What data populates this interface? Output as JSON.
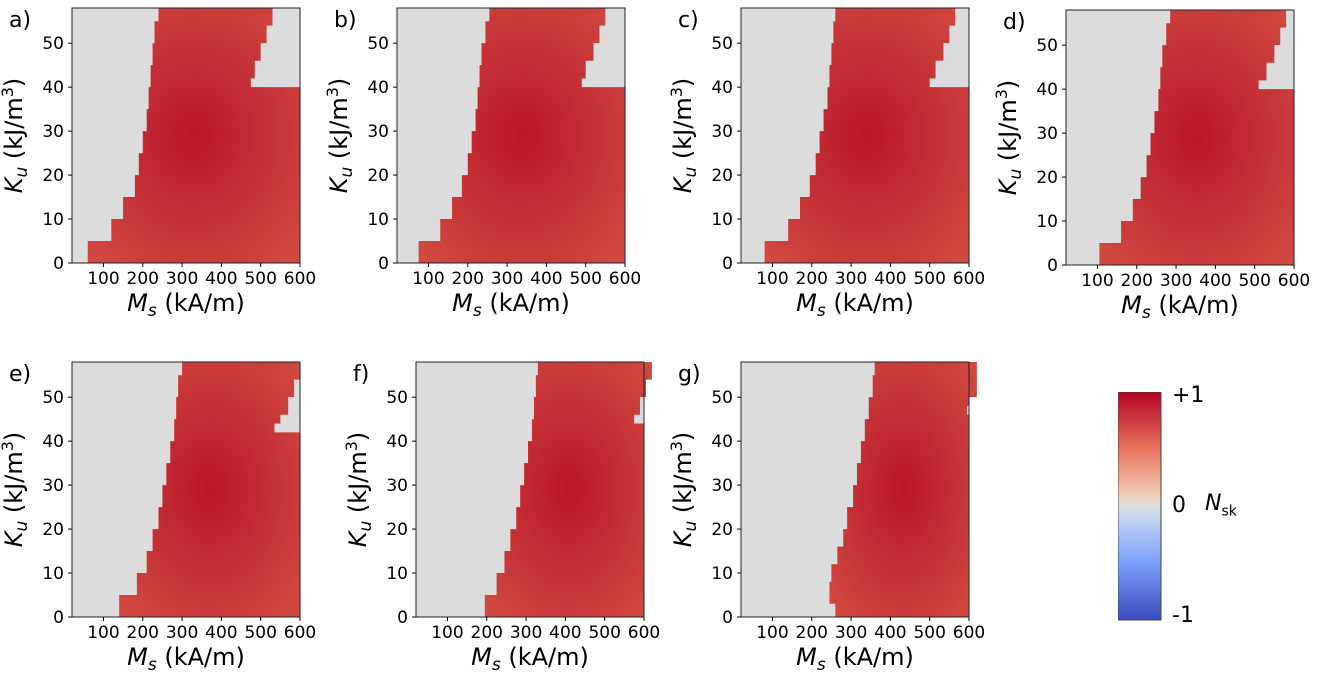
{
  "colors": {
    "background_region": "#dcdcdc",
    "skyrmion_region": "#c0282d",
    "colormap_high": "#b40426",
    "colormap_mid": "#dddddd",
    "colormap_low": "#3b4cc0"
  },
  "colorbar": {
    "label_main": "N",
    "label_sub": "sk",
    "ticks": [
      "+1",
      "0",
      "-1"
    ],
    "range": [
      -1,
      1
    ]
  },
  "chart_data": [
    {
      "panel": "a)",
      "type": "heatmap",
      "xlabel": "M_s (kA/m)",
      "ylabel": "K_u (kJ/m^3)",
      "xticks": [
        100,
        200,
        300,
        400,
        500,
        600
      ],
      "yticks": [
        0,
        10,
        20,
        30,
        40,
        50
      ],
      "xlim": [
        20,
        600
      ],
      "ylim": [
        0,
        58
      ],
      "skyrmion_region": {
        "value": 1,
        "left_boundary_Ms": [
          [
            0,
            60
          ],
          [
            5,
            120
          ],
          [
            10,
            150
          ],
          [
            15,
            180
          ],
          [
            20,
            190
          ],
          [
            25,
            200
          ],
          [
            30,
            210
          ],
          [
            35,
            215
          ],
          [
            40,
            220
          ],
          [
            45,
            225
          ],
          [
            50,
            230
          ],
          [
            55,
            240
          ],
          [
            58,
            245
          ]
        ],
        "upper_right_gap": [
          [
            58,
            530
          ],
          [
            54,
            515
          ],
          [
            50,
            500
          ],
          [
            46,
            485
          ],
          [
            42,
            475
          ],
          [
            40,
            470
          ]
        ]
      }
    },
    {
      "panel": "b)",
      "type": "heatmap",
      "xlabel": "M_s (kA/m)",
      "ylabel": "K_u (kJ/m^3)",
      "xticks": [
        100,
        200,
        300,
        400,
        500,
        600
      ],
      "yticks": [
        0,
        10,
        20,
        30,
        40,
        50
      ],
      "xlim": [
        20,
        600
      ],
      "ylim": [
        0,
        58
      ],
      "skyrmion_region": {
        "value": 1,
        "left_boundary_Ms": [
          [
            0,
            75
          ],
          [
            5,
            130
          ],
          [
            10,
            160
          ],
          [
            15,
            185
          ],
          [
            20,
            200
          ],
          [
            25,
            210
          ],
          [
            30,
            220
          ],
          [
            35,
            225
          ],
          [
            40,
            230
          ],
          [
            45,
            235
          ],
          [
            50,
            245
          ],
          [
            55,
            255
          ],
          [
            58,
            260
          ]
        ],
        "upper_right_gap": [
          [
            58,
            550
          ],
          [
            54,
            535
          ],
          [
            50,
            520
          ],
          [
            46,
            500
          ],
          [
            42,
            490
          ],
          [
            40,
            480
          ]
        ]
      }
    },
    {
      "panel": "c)",
      "type": "heatmap",
      "xlabel": "M_s (kA/m)",
      "ylabel": "K_u (kJ/m^3)",
      "xticks": [
        100,
        200,
        300,
        400,
        500,
        600
      ],
      "yticks": [
        0,
        10,
        20,
        30,
        40,
        50
      ],
      "xlim": [
        20,
        600
      ],
      "ylim": [
        0,
        58
      ],
      "skyrmion_region": {
        "value": 1,
        "left_boundary_Ms": [
          [
            0,
            80
          ],
          [
            5,
            140
          ],
          [
            10,
            170
          ],
          [
            15,
            195
          ],
          [
            20,
            210
          ],
          [
            25,
            220
          ],
          [
            30,
            230
          ],
          [
            35,
            240
          ],
          [
            40,
            245
          ],
          [
            45,
            250
          ],
          [
            50,
            255
          ],
          [
            55,
            260
          ],
          [
            58,
            265
          ]
        ],
        "upper_right_gap": [
          [
            58,
            565
          ],
          [
            54,
            550
          ],
          [
            50,
            535
          ],
          [
            46,
            515
          ],
          [
            42,
            500
          ],
          [
            40,
            495
          ]
        ]
      }
    },
    {
      "panel": "d)",
      "type": "heatmap",
      "xlabel": "M_s (kA/m)",
      "ylabel": "K_u (kJ/m^3)",
      "xticks": [
        100,
        200,
        300,
        400,
        500,
        600
      ],
      "yticks": [
        0,
        10,
        20,
        30,
        40,
        50
      ],
      "xlim": [
        20,
        600
      ],
      "ylim": [
        0,
        58
      ],
      "skyrmion_region": {
        "value": 1,
        "left_boundary_Ms": [
          [
            0,
            105
          ],
          [
            5,
            160
          ],
          [
            10,
            190
          ],
          [
            15,
            210
          ],
          [
            20,
            225
          ],
          [
            25,
            235
          ],
          [
            30,
            245
          ],
          [
            35,
            255
          ],
          [
            40,
            260
          ],
          [
            45,
            265
          ],
          [
            50,
            275
          ],
          [
            55,
            285
          ],
          [
            58,
            290
          ]
        ],
        "upper_right_gap": [
          [
            58,
            580
          ],
          [
            54,
            565
          ],
          [
            50,
            550
          ],
          [
            46,
            530
          ],
          [
            42,
            510
          ],
          [
            40,
            505
          ]
        ]
      }
    },
    {
      "panel": "e)",
      "type": "heatmap",
      "xlabel": "M_s (kA/m)",
      "ylabel": "K_u (kJ/m^3)",
      "xticks": [
        100,
        200,
        300,
        400,
        500,
        600
      ],
      "yticks": [
        0,
        10,
        20,
        30,
        40,
        50
      ],
      "xlim": [
        20,
        600
      ],
      "ylim": [
        0,
        58
      ],
      "skyrmion_region": {
        "value": 1,
        "left_boundary_Ms": [
          [
            0,
            140
          ],
          [
            5,
            185
          ],
          [
            10,
            210
          ],
          [
            15,
            225
          ],
          [
            20,
            240
          ],
          [
            25,
            250
          ],
          [
            30,
            260
          ],
          [
            35,
            270
          ],
          [
            40,
            280
          ],
          [
            45,
            285
          ],
          [
            50,
            290
          ],
          [
            55,
            300
          ],
          [
            58,
            305
          ]
        ],
        "upper_right_gap": [
          [
            58,
            600
          ],
          [
            54,
            585
          ],
          [
            50,
            570
          ],
          [
            46,
            550
          ],
          [
            44,
            535
          ],
          [
            42,
            525
          ]
        ]
      }
    },
    {
      "panel": "f)",
      "type": "heatmap",
      "xlabel": "M_s (kA/m)",
      "ylabel": "K_u (kJ/m^3)",
      "xticks": [
        100,
        200,
        300,
        400,
        500,
        600
      ],
      "yticks": [
        0,
        10,
        20,
        30,
        40,
        50
      ],
      "xlim": [
        20,
        600
      ],
      "ylim": [
        0,
        58
      ],
      "skyrmion_region": {
        "value": 1,
        "left_boundary_Ms": [
          [
            0,
            195
          ],
          [
            5,
            225
          ],
          [
            10,
            245
          ],
          [
            15,
            260
          ],
          [
            20,
            275
          ],
          [
            25,
            285
          ],
          [
            30,
            295
          ],
          [
            35,
            305
          ],
          [
            40,
            315
          ],
          [
            45,
            320
          ],
          [
            50,
            325
          ],
          [
            55,
            330
          ],
          [
            58,
            335
          ]
        ],
        "upper_right_gap": [
          [
            58,
            620
          ],
          [
            54,
            605
          ],
          [
            50,
            590
          ],
          [
            46,
            575
          ],
          [
            44,
            560
          ]
        ]
      }
    },
    {
      "panel": "g)",
      "type": "heatmap",
      "xlabel": "M_s (kA/m)",
      "ylabel": "K_u (kJ/m^3)",
      "xticks": [
        100,
        200,
        300,
        400,
        500,
        600
      ],
      "yticks": [
        0,
        10,
        20,
        30,
        40,
        50
      ],
      "xlim": [
        20,
        600
      ],
      "ylim": [
        0,
        58
      ],
      "skyrmion_region": {
        "value": 1,
        "left_boundary_Ms": [
          [
            0,
            260
          ],
          [
            3,
            245
          ],
          [
            8,
            250
          ],
          [
            12,
            265
          ],
          [
            16,
            280
          ],
          [
            20,
            290
          ],
          [
            25,
            305
          ],
          [
            30,
            315
          ],
          [
            35,
            325
          ],
          [
            40,
            335
          ],
          [
            45,
            345
          ],
          [
            50,
            355
          ],
          [
            55,
            360
          ],
          [
            58,
            365
          ]
        ],
        "upper_right_gap": [
          [
            52,
            620
          ],
          [
            50,
            600
          ],
          [
            48,
            595
          ],
          [
            46,
            590
          ]
        ]
      }
    }
  ]
}
